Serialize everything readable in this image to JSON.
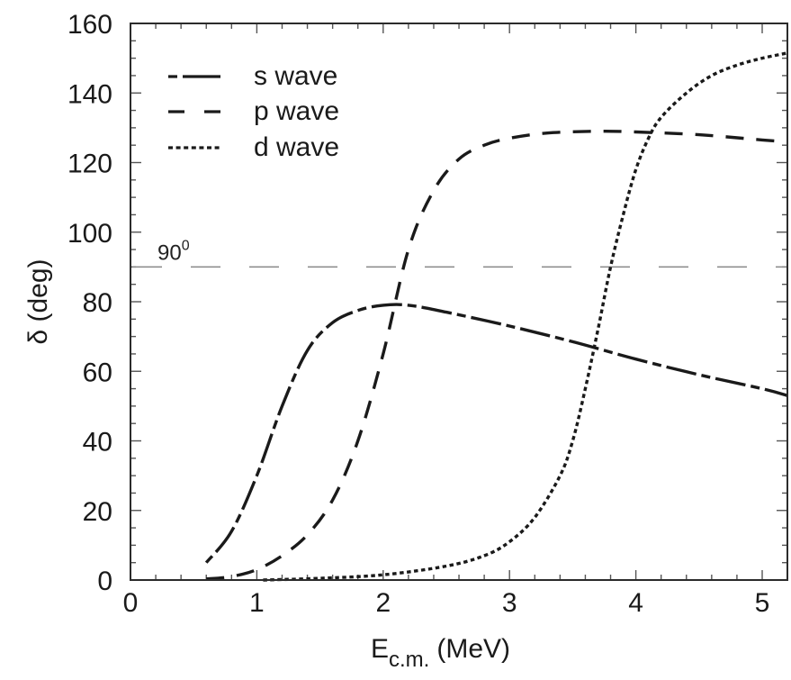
{
  "chart_data": {
    "type": "line",
    "title": "",
    "xlabel": "E_c.m. (MeV)",
    "xlabel_main": "E",
    "xlabel_sub": "c.m.",
    "xlabel_unit": "(MeV)",
    "ylabel": "δ (deg)",
    "xlim": [
      0,
      5.2
    ],
    "ylim": [
      0,
      160
    ],
    "xticks": [
      0,
      1,
      2,
      3,
      4,
      5
    ],
    "xtick_labels": [
      "0",
      "1",
      "2",
      "3",
      "4",
      "5"
    ],
    "yticks": [
      0,
      20,
      40,
      60,
      80,
      100,
      120,
      140,
      160
    ],
    "ytick_labels": [
      "0",
      "20",
      "40",
      "60",
      "80",
      "100",
      "120",
      "140",
      "160"
    ],
    "x_minor_step": 0.2,
    "y_minor_step": 5,
    "grid": false,
    "legend_position": "upper left",
    "annotations": [
      {
        "type": "hline",
        "y": 90,
        "style": "dashed",
        "color": "#888888",
        "label": "90",
        "label_sup": "0"
      }
    ],
    "series": [
      {
        "name": "s wave",
        "style": "dash-dot (long-short)",
        "x": [
          0.6,
          0.8,
          1.0,
          1.2,
          1.4,
          1.6,
          1.8,
          2.0,
          2.2,
          2.5,
          3.0,
          3.5,
          4.0,
          4.5,
          5.0,
          5.2
        ],
        "values": [
          5,
          14,
          30,
          50,
          66,
          74,
          77.5,
          79,
          79,
          77,
          73,
          68.5,
          63.5,
          59,
          55,
          53
        ]
      },
      {
        "name": "p wave",
        "style": "dashed",
        "x": [
          0.6,
          0.8,
          1.0,
          1.2,
          1.4,
          1.6,
          1.8,
          2.0,
          2.2,
          2.4,
          2.6,
          2.8,
          3.0,
          3.3,
          3.7,
          4.0,
          4.5,
          5.0,
          5.2
        ],
        "values": [
          0.3,
          1,
          3,
          7,
          13,
          23,
          40,
          65,
          95,
          112,
          121,
          125,
          127,
          128.5,
          129,
          128.8,
          128,
          126.5,
          126
        ]
      },
      {
        "name": "d wave",
        "style": "dotted",
        "x": [
          1.05,
          1.5,
          2.0,
          2.5,
          2.8,
          3.0,
          3.2,
          3.4,
          3.5,
          3.6,
          3.7,
          3.8,
          3.9,
          4.0,
          4.1,
          4.2,
          4.4,
          4.6,
          4.8,
          5.0,
          5.2
        ],
        "values": [
          0,
          0.5,
          1.5,
          4,
          7,
          11,
          18,
          30,
          40,
          55,
          72,
          90,
          105,
          118,
          127,
          133,
          140,
          145,
          148,
          150,
          151.5
        ]
      }
    ]
  },
  "legend": {
    "items": [
      {
        "label": "s wave"
      },
      {
        "label": "p wave"
      },
      {
        "label": "d wave"
      }
    ]
  },
  "annotation": {
    "label": "90",
    "sup": "0"
  },
  "axes": {
    "ylabel": "δ (deg)",
    "xlabel_main": "E",
    "xlabel_sub": "c.m.",
    "xlabel_unit": "(MeV)"
  }
}
